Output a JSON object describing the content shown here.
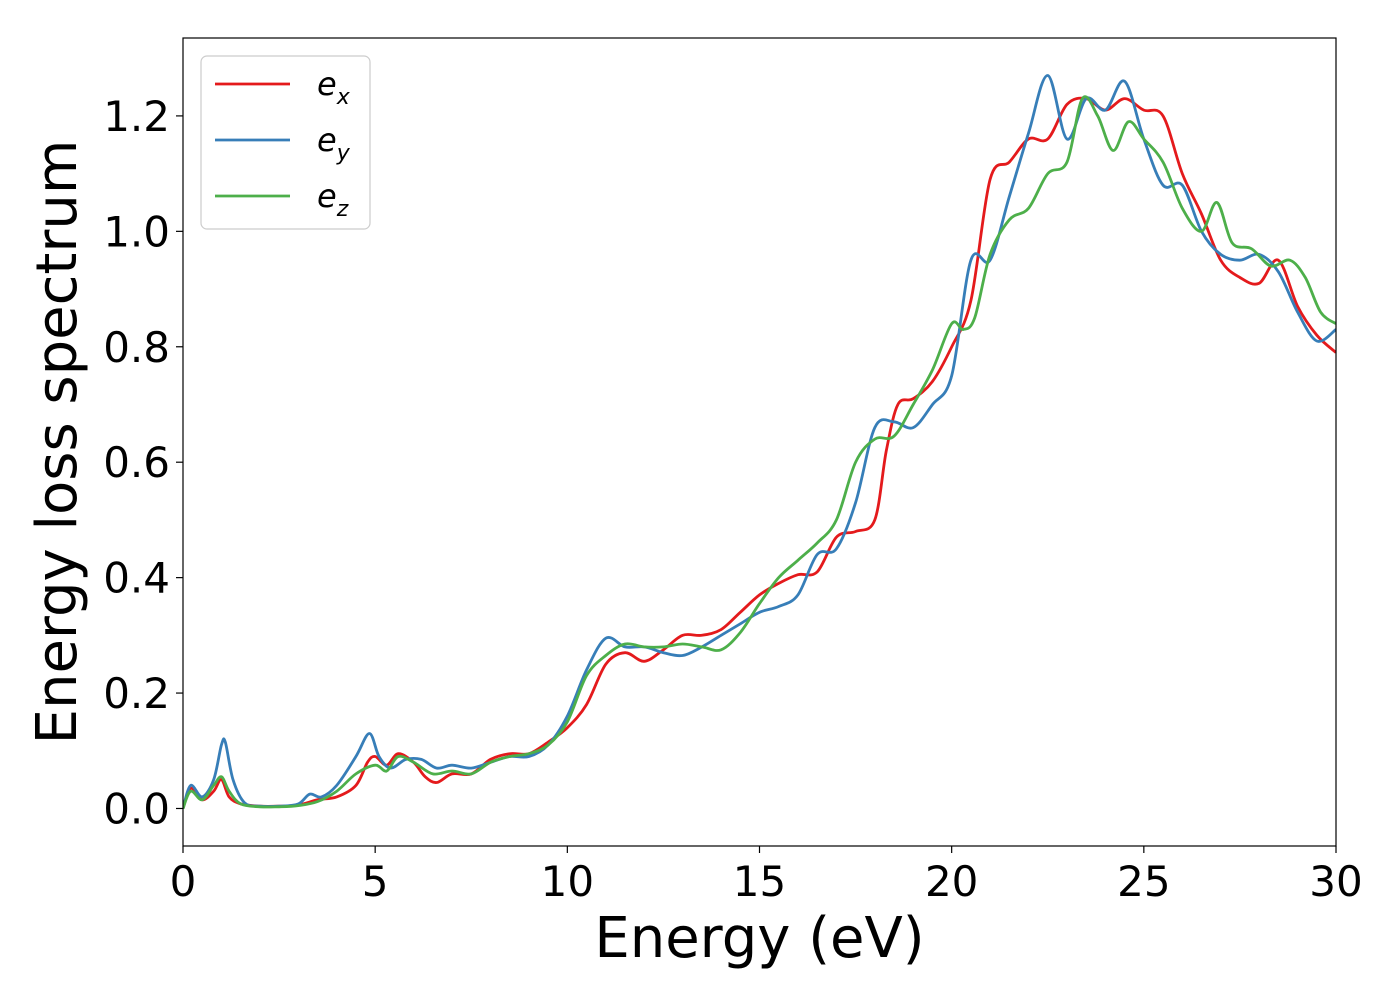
{
  "chart_data": {
    "type": "line",
    "title": "",
    "xlabel": "Energy (eV)",
    "ylabel": "Energy loss spectrum",
    "xlim": [
      0,
      30
    ],
    "ylim": [
      -0.065,
      1.335
    ],
    "xticks": [
      0,
      5,
      10,
      15,
      20,
      25,
      30
    ],
    "xtick_labels": [
      "0",
      "5",
      "10",
      "15",
      "20",
      "25",
      "30"
    ],
    "yticks": [
      0.0,
      0.2,
      0.4,
      0.6,
      0.8,
      1.0,
      1.2
    ],
    "ytick_labels": [
      "0.0",
      "0.2",
      "0.4",
      "0.6",
      "0.8",
      "1.0",
      "1.2"
    ],
    "grid": false,
    "legend": "top-left",
    "series": [
      {
        "name": "e",
        "subscript": "x",
        "color": "#e41a1c",
        "x": [
          0,
          0.2,
          0.5,
          0.8,
          1.0,
          1.2,
          1.5,
          2.0,
          2.5,
          3.0,
          3.5,
          4.0,
          4.5,
          4.8,
          5.0,
          5.3,
          5.6,
          6.0,
          6.3,
          6.6,
          7.0,
          7.5,
          8.0,
          8.5,
          9.0,
          9.5,
          10.0,
          10.5,
          11.0,
          11.5,
          12.0,
          12.5,
          13.0,
          13.5,
          14.0,
          14.5,
          15.0,
          15.5,
          16.0,
          16.5,
          17.0,
          17.5,
          18.0,
          18.3,
          18.6,
          19.0,
          19.5,
          20.0,
          20.5,
          21.0,
          21.5,
          22.0,
          22.5,
          23.0,
          23.5,
          24.0,
          24.5,
          25.0,
          25.5,
          26.0,
          26.5,
          27.0,
          27.5,
          28.0,
          28.5,
          29.0,
          29.5,
          30.0
        ],
        "values": [
          0.0,
          0.035,
          0.015,
          0.03,
          0.05,
          0.02,
          0.008,
          0.004,
          0.004,
          0.006,
          0.015,
          0.02,
          0.04,
          0.08,
          0.09,
          0.075,
          0.095,
          0.08,
          0.055,
          0.045,
          0.06,
          0.06,
          0.085,
          0.095,
          0.095,
          0.115,
          0.14,
          0.18,
          0.25,
          0.27,
          0.255,
          0.275,
          0.3,
          0.3,
          0.31,
          0.34,
          0.37,
          0.39,
          0.405,
          0.41,
          0.47,
          0.48,
          0.5,
          0.62,
          0.7,
          0.71,
          0.74,
          0.8,
          0.88,
          1.09,
          1.12,
          1.16,
          1.16,
          1.22,
          1.23,
          1.21,
          1.23,
          1.21,
          1.2,
          1.1,
          1.03,
          0.95,
          0.92,
          0.91,
          0.95,
          0.87,
          0.82,
          0.79
        ]
      },
      {
        "name": "e",
        "subscript": "y",
        "color": "#377eb8",
        "x": [
          0,
          0.2,
          0.5,
          0.8,
          1.0,
          1.1,
          1.3,
          1.6,
          2.0,
          2.5,
          3.0,
          3.3,
          3.6,
          4.0,
          4.5,
          4.85,
          5.1,
          5.4,
          5.8,
          6.2,
          6.6,
          7.0,
          7.5,
          8.0,
          8.5,
          9.0,
          9.5,
          10.0,
          10.5,
          11.0,
          11.5,
          12.0,
          12.5,
          13.0,
          13.5,
          14.0,
          14.5,
          15.0,
          15.5,
          16.0,
          16.5,
          17.0,
          17.5,
          18.0,
          18.5,
          19.0,
          19.5,
          20.0,
          20.5,
          21.0,
          21.5,
          22.0,
          22.5,
          23.0,
          23.5,
          24.0,
          24.5,
          25.0,
          25.5,
          26.0,
          26.5,
          27.0,
          27.5,
          28.0,
          28.5,
          29.0,
          29.5,
          30.0
        ],
        "values": [
          0.0,
          0.04,
          0.02,
          0.05,
          0.11,
          0.115,
          0.05,
          0.01,
          0.004,
          0.004,
          0.008,
          0.025,
          0.02,
          0.04,
          0.09,
          0.13,
          0.09,
          0.07,
          0.085,
          0.085,
          0.07,
          0.075,
          0.07,
          0.08,
          0.09,
          0.09,
          0.11,
          0.16,
          0.24,
          0.295,
          0.28,
          0.28,
          0.27,
          0.265,
          0.28,
          0.3,
          0.32,
          0.34,
          0.35,
          0.37,
          0.44,
          0.45,
          0.53,
          0.66,
          0.67,
          0.66,
          0.7,
          0.75,
          0.95,
          0.95,
          1.06,
          1.17,
          1.27,
          1.16,
          1.23,
          1.21,
          1.26,
          1.16,
          1.08,
          1.08,
          1.0,
          0.96,
          0.95,
          0.96,
          0.93,
          0.86,
          0.81,
          0.83
        ]
      },
      {
        "name": "e",
        "subscript": "z",
        "color": "#4daf4a",
        "x": [
          0,
          0.2,
          0.5,
          0.8,
          1.0,
          1.2,
          1.5,
          2.0,
          2.5,
          3.0,
          3.5,
          4.0,
          4.5,
          5.0,
          5.3,
          5.6,
          6.0,
          6.5,
          7.0,
          7.5,
          8.0,
          8.5,
          9.0,
          9.5,
          10.0,
          10.5,
          11.0,
          11.5,
          12.0,
          12.5,
          13.0,
          13.5,
          14.0,
          14.5,
          15.0,
          15.5,
          16.0,
          16.5,
          17.0,
          17.5,
          18.0,
          18.5,
          19.0,
          19.5,
          20.0,
          20.3,
          20.6,
          21.0,
          21.5,
          22.0,
          22.5,
          23.0,
          23.4,
          23.8,
          24.2,
          24.6,
          25.0,
          25.5,
          26.0,
          26.5,
          26.9,
          27.3,
          27.8,
          28.3,
          28.8,
          29.2,
          29.6,
          30.0
        ],
        "values": [
          0.0,
          0.03,
          0.015,
          0.04,
          0.055,
          0.03,
          0.008,
          0.003,
          0.003,
          0.005,
          0.012,
          0.03,
          0.06,
          0.075,
          0.065,
          0.09,
          0.08,
          0.06,
          0.065,
          0.06,
          0.08,
          0.09,
          0.095,
          0.11,
          0.15,
          0.23,
          0.265,
          0.285,
          0.28,
          0.28,
          0.285,
          0.28,
          0.275,
          0.305,
          0.355,
          0.4,
          0.43,
          0.46,
          0.5,
          0.6,
          0.64,
          0.645,
          0.7,
          0.76,
          0.84,
          0.83,
          0.85,
          0.96,
          1.02,
          1.04,
          1.1,
          1.12,
          1.23,
          1.2,
          1.14,
          1.19,
          1.16,
          1.12,
          1.04,
          1.0,
          1.05,
          0.98,
          0.97,
          0.94,
          0.95,
          0.92,
          0.86,
          0.84
        ]
      }
    ]
  }
}
